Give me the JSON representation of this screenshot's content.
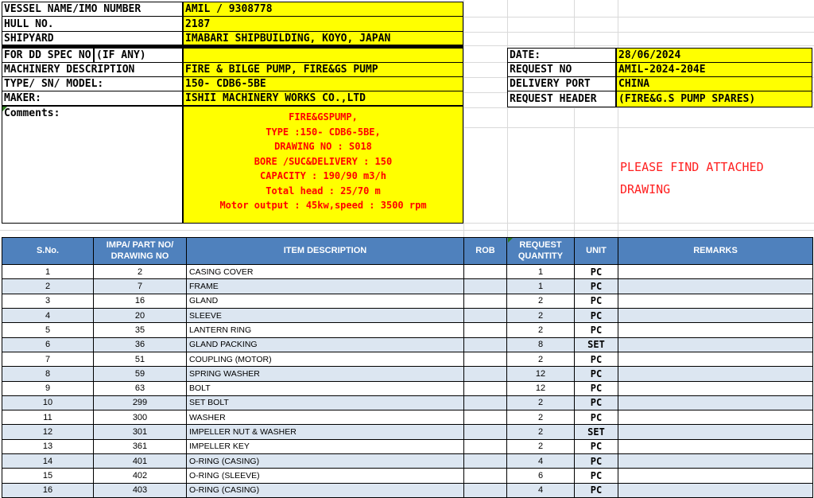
{
  "colors": {
    "header_blue": "#4F81BD",
    "band_blue": "#DCE6F1",
    "highlight_yellow": "#FFFF00",
    "alert_red": "#FF0000"
  },
  "vessel_info": {
    "rows": [
      {
        "label": "VESSEL NAME/IMO NUMBER",
        "value": "AMIL / 9308778"
      },
      {
        "label": "HULL NO.",
        "value": "2187"
      },
      {
        "label": "SHIPYARD",
        "value": "IMABARI SHIPBUILDING, KOYO, JAPAN"
      }
    ]
  },
  "spec_info": {
    "dd_spec_label": "FOR DD SPEC NO:",
    "dd_spec_label2": "(IF ANY)",
    "dd_spec_value": "",
    "rows": [
      {
        "label": "MACHINERY DESCRIPTION",
        "value": "FIRE & BILGE PUMP, FIRE&GS PUMP"
      },
      {
        "label": "TYPE/ SN/ MODEL:",
        "value": "150- CDB6-5BE"
      },
      {
        "label": "MAKER:",
        "value": "ISHII MACHINERY WORKS CO.,LTD"
      }
    ]
  },
  "request_info": {
    "rows": [
      {
        "label": "DATE:",
        "value": "28/06/2024"
      },
      {
        "label": "REQUEST NO",
        "value": "AMIL-2024-204E"
      },
      {
        "label": "DELIVERY PORT",
        "value": "CHINA"
      },
      {
        "label": "REQUEST HEADER",
        "value": "(FIRE&G.S PUMP SPARES)"
      }
    ]
  },
  "comments": {
    "label": "Comments:",
    "lines": [
      "FIRE&GSPUMP,",
      "TYPE :150- CDB6-5BE,",
      "DRAWING NO : S018",
      "BORE /SUC&DELIVERY : 150",
      "CAPACITY : 190/90 m3/h",
      "Total head : 25/70 m",
      "Motor output : 45kw,speed : 3500 rpm"
    ]
  },
  "attached_note": "PLEASE FIND ATTACHED DRAWING",
  "parts_table": {
    "headers": [
      "S.No.",
      "IMPA/ PART NO/ DRAWING NO",
      "ITEM DESCRIPTION",
      "ROB",
      "REQUEST QUANTITY",
      "UNIT",
      "REMARKS"
    ],
    "rows": [
      [
        "1",
        "2",
        "CASING COVER",
        "",
        "1",
        "PC",
        ""
      ],
      [
        "2",
        "7",
        "FRAME",
        "",
        "1",
        "PC",
        ""
      ],
      [
        "3",
        "16",
        "GLAND",
        "",
        "2",
        "PC",
        ""
      ],
      [
        "4",
        "20",
        "SLEEVE",
        "",
        "2",
        "PC",
        ""
      ],
      [
        "5",
        "35",
        "LANTERN RING",
        "",
        "2",
        "PC",
        ""
      ],
      [
        "6",
        "36",
        "GLAND PACKING",
        "",
        "8",
        "SET",
        ""
      ],
      [
        "7",
        "51",
        "COUPLING (MOTOR)",
        "",
        "2",
        "PC",
        ""
      ],
      [
        "8",
        "59",
        "SPRING WASHER",
        "",
        "12",
        "PC",
        ""
      ],
      [
        "9",
        "63",
        "BOLT",
        "",
        "12",
        "PC",
        ""
      ],
      [
        "10",
        "299",
        "SET BOLT",
        "",
        "2",
        "PC",
        ""
      ],
      [
        "11",
        "300",
        "WASHER",
        "",
        "2",
        "PC",
        ""
      ],
      [
        "12",
        "301",
        "IMPELLER NUT & WASHER",
        "",
        "2",
        "SET",
        ""
      ],
      [
        "13",
        "361",
        "IMPELLER KEY",
        "",
        "2",
        "PC",
        ""
      ],
      [
        "14",
        "401",
        "O-RING (CASING)",
        "",
        "4",
        "PC",
        ""
      ],
      [
        "15",
        "402",
        "O-RING (SLEEVE)",
        "",
        "6",
        "PC",
        ""
      ],
      [
        "16",
        "403",
        "O-RING (CASING)",
        "",
        "4",
        "PC",
        ""
      ]
    ]
  }
}
